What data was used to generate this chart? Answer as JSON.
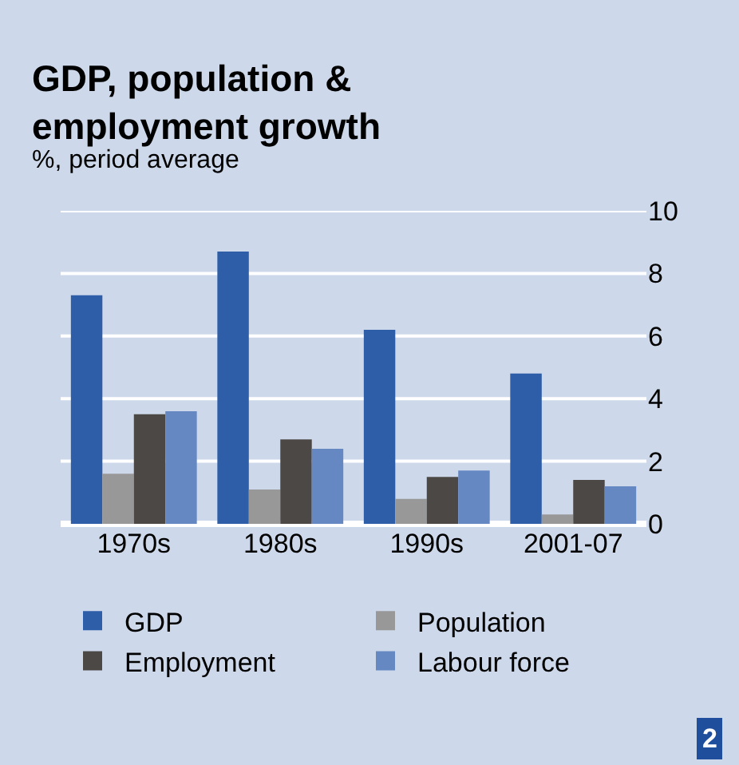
{
  "chart_data": {
    "type": "bar",
    "title": "GDP, population & employment growth",
    "subtitle": "%, period average",
    "categories": [
      "1970s",
      "1980s",
      "1990s",
      "2001-07"
    ],
    "series": [
      {
        "name": "GDP",
        "color": "#2f5ea8",
        "values": [
          7.3,
          8.7,
          6.2,
          4.8
        ]
      },
      {
        "name": "Population",
        "color": "#989898",
        "values": [
          1.6,
          1.1,
          0.8,
          0.3
        ]
      },
      {
        "name": "Employment",
        "color": "#4c4846",
        "values": [
          3.5,
          2.7,
          1.5,
          1.4
        ]
      },
      {
        "name": "Labour force",
        "color": "#6688c2",
        "values": [
          3.6,
          2.4,
          1.7,
          1.2
        ]
      }
    ],
    "ylim": [
      0,
      10
    ],
    "yticks": [
      0,
      2,
      4,
      6,
      8,
      10
    ],
    "grid": "y",
    "legend": "bottom",
    "annotations": [
      "2"
    ]
  }
}
